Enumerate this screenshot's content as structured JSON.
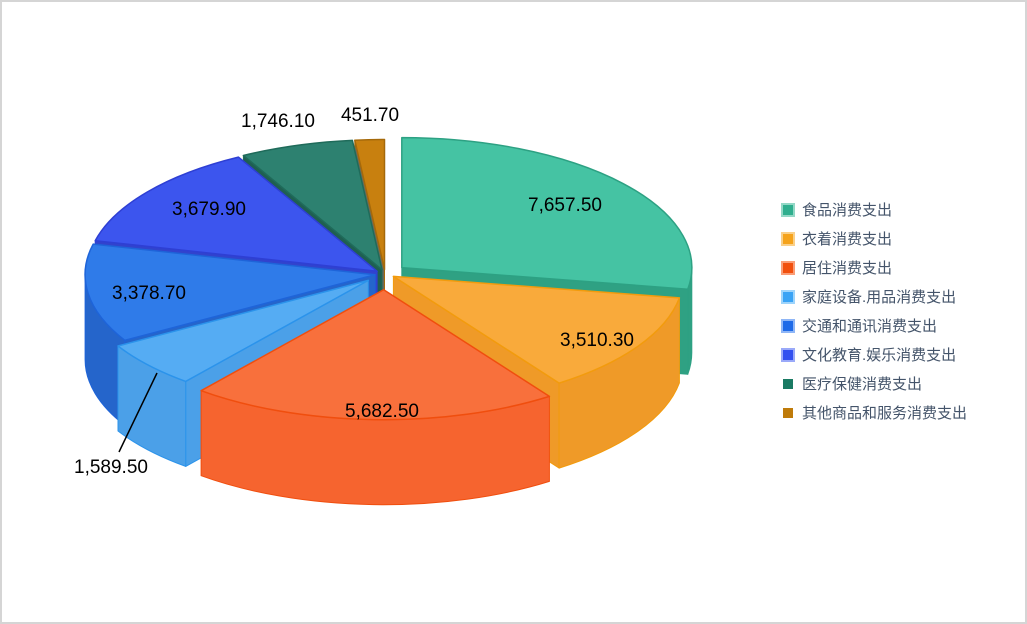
{
  "chart_data": {
    "type": "pie",
    "style": "3d-exploded",
    "title": "",
    "legend_position": "right",
    "legend_text_color": "#44546A",
    "value_label_color": "#000000",
    "slices": [
      {
        "name": "食品消费支出",
        "value": 7657.5,
        "label": "7,657.50",
        "label_placement": "inside",
        "color_top": "#45C3A3",
        "color_side": "#2FA183",
        "color_stroke": "#2DA183",
        "legend_fill": "#2FAE8E",
        "legend_border": "#93D8C6",
        "legend_small": false,
        "explode": 22
      },
      {
        "name": "衣着消费支出",
        "value": 3510.3,
        "label": "3,510.30",
        "label_placement": "inside",
        "color_top": "#F9AA3B",
        "color_side": "#EF9A28",
        "color_stroke": "#F29B0D",
        "legend_fill": "#F5A31C",
        "legend_border": "#FAD089",
        "legend_small": false,
        "explode": 10
      },
      {
        "name": "居住消费支出",
        "value": 5682.5,
        "label": "5,682.50",
        "label_placement": "inside",
        "color_top": "#F8703C",
        "color_side": "#F6642F",
        "color_stroke": "#F04E0E",
        "legend_fill": "#F1500E",
        "legend_border": "#FA9D76",
        "legend_small": false,
        "explode": 35
      },
      {
        "name": "家庭设备.用品消费支出",
        "value": 1589.5,
        "label": "1,589.50",
        "label_placement": "outside-leader",
        "color_top": "#55ACF3",
        "color_side": "#4BA0E8",
        "color_stroke": "#2B93EB",
        "legend_fill": "#3AA3F5",
        "legend_border": "#9ED4FB",
        "legend_small": false,
        "explode": 22
      },
      {
        "name": "交通和通讯消费支出",
        "value": 3378.7,
        "label": "3,378.70",
        "label_placement": "inside",
        "color_top": "#2F7BE9",
        "color_side": "#2565CB",
        "color_stroke": "#1E64D9",
        "legend_fill": "#1E6AE8",
        "legend_border": "#8FB6F6",
        "legend_small": false,
        "explode": 10
      },
      {
        "name": "文化教育.娱乐消费支出",
        "value": 3679.9,
        "label": "3,679.90",
        "label_placement": "inside",
        "color_top": "#3C55EE",
        "color_side": "#3143CD",
        "color_stroke": "#2E3FD4",
        "legend_fill": "#3350F0",
        "legend_border": "#9AA9F9",
        "legend_small": false,
        "explode": 10
      },
      {
        "name": "医疗保健消费支出",
        "value": 1746.1,
        "label": "1,746.10",
        "label_placement": "outside",
        "color_top": "#2D8170",
        "color_side": "#1F5F51",
        "color_stroke": "#1F6B5A",
        "legend_fill": "#1A7A63",
        "legend_border": null,
        "legend_small": true,
        "explode": 10
      },
      {
        "name": "其他商品和服务消费支出",
        "value": 451.7,
        "label": "451.70",
        "label_placement": "outside",
        "color_top": "#C8800F",
        "color_side": "#6E6A5A",
        "color_stroke": "#A5690A",
        "legend_fill": "#BF7B0A",
        "legend_border": null,
        "legend_small": true,
        "explode": 10
      }
    ]
  }
}
